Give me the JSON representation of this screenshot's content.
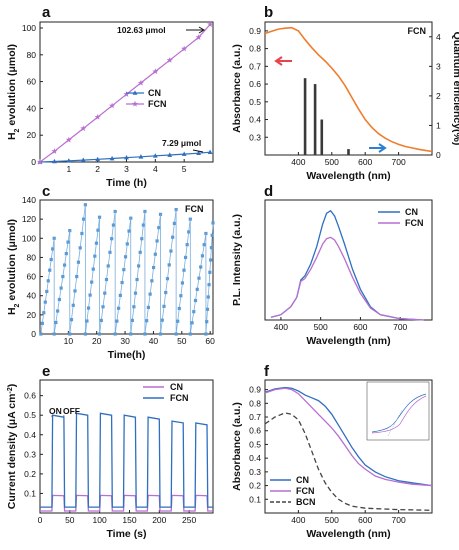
{
  "chart_data": [
    {
      "panel": "a",
      "type": "line",
      "xlabel": "Time (h)",
      "ylabel": "H2 evolution (μmol)",
      "xlim": [
        0,
        6
      ],
      "ylim": [
        0,
        100
      ],
      "xticks": [
        1,
        2,
        3,
        4,
        5
      ],
      "yticks": [
        0,
        20,
        40,
        60,
        80,
        100
      ],
      "annotations": [
        "102.63 μmol",
        "7.29 μmol"
      ],
      "legend": "center-right",
      "series": [
        {
          "name": "CN",
          "color": "#2f6fc0",
          "marker": "triangle",
          "x": [
            0,
            0.5,
            1,
            1.5,
            2,
            2.5,
            3,
            3.5,
            4,
            4.5,
            5,
            5.5,
            5.9
          ],
          "y": [
            0,
            0.4,
            0.9,
            1.4,
            2.0,
            2.6,
            3.3,
            3.9,
            4.6,
            5.2,
            5.9,
            6.6,
            7.29
          ]
        },
        {
          "name": "FCN",
          "color": "#b86fd0",
          "marker": "star",
          "x": [
            0,
            0.5,
            1,
            1.5,
            2,
            2.5,
            3,
            3.5,
            4,
            4.5,
            5,
            5.5,
            5.9
          ],
          "y": [
            0,
            8,
            16.5,
            25,
            33.5,
            42,
            50.5,
            59,
            67.5,
            76,
            84.5,
            93,
            102.63
          ]
        }
      ]
    },
    {
      "panel": "b",
      "type": "line",
      "title": "FCN",
      "xlabel": "Wavelength (nm)",
      "ylabel": "Absorbance (a.u.)",
      "ylabel_right": "Quantum efficiency(%)",
      "xlim": [
        300,
        800
      ],
      "ylim": [
        0.2,
        0.95
      ],
      "ylim_right": [
        0,
        4.5
      ],
      "xticks": [
        400,
        500,
        600,
        700
      ],
      "yticks": [
        0.3,
        0.4,
        0.5,
        0.6,
        0.7,
        0.8,
        0.9
      ],
      "yticks_right": [
        0,
        1,
        2,
        3,
        4
      ],
      "series": [
        {
          "name": "Absorbance",
          "color": "#ef7d2e",
          "x": [
            300,
            320,
            340,
            360,
            380,
            400,
            420,
            440,
            460,
            480,
            500,
            520,
            540,
            560,
            580,
            600,
            620,
            640,
            660,
            680,
            700,
            720,
            740,
            760,
            780,
            800
          ],
          "y": [
            0.885,
            0.898,
            0.91,
            0.915,
            0.918,
            0.9,
            0.85,
            0.805,
            0.765,
            0.73,
            0.69,
            0.645,
            0.59,
            0.525,
            0.46,
            0.4,
            0.355,
            0.32,
            0.295,
            0.275,
            0.26,
            0.248,
            0.24,
            0.232,
            0.226,
            0.22
          ]
        }
      ],
      "bars": {
        "name": "Quantum efficiency",
        "color": "#3a3a3a",
        "x": [
          420,
          450,
          470,
          550
        ],
        "values": [
          2.6,
          2.4,
          1.2,
          0.2
        ]
      }
    },
    {
      "panel": "c",
      "type": "line",
      "title": "FCN",
      "xlabel": "Time(h)",
      "ylabel": "H2 evolution (μmol)",
      "xlim": [
        0,
        61
      ],
      "ylim": [
        0,
        140
      ],
      "xticks": [
        10,
        20,
        30,
        40,
        50,
        60
      ],
      "yticks": [
        0,
        20,
        40,
        60,
        80,
        100,
        120,
        140
      ],
      "cycle_peaks": [
        [
          5,
          100
        ],
        [
          10.5,
          108
        ],
        [
          16,
          135
        ],
        [
          21,
          122
        ],
        [
          26.5,
          128
        ],
        [
          32,
          121
        ],
        [
          37,
          128
        ],
        [
          42.5,
          125
        ],
        [
          48,
          130
        ],
        [
          53,
          120
        ],
        [
          58.5,
          105
        ],
        [
          61,
          116
        ]
      ]
    },
    {
      "panel": "d",
      "type": "line",
      "xlabel": "Wavelength (nm)",
      "ylabel": "P.L. Intensity (a.u.)",
      "xlim": [
        360,
        780
      ],
      "xticks": [
        400,
        500,
        600,
        700
      ],
      "legend": "top-right",
      "series": [
        {
          "name": "CN",
          "color": "#2f6fc0",
          "x": [
            375,
            400,
            425,
            440,
            450,
            460,
            475,
            490,
            505,
            515,
            525,
            535,
            545,
            560,
            580,
            600,
            625,
            650,
            700,
            760
          ],
          "y": [
            0.02,
            0.04,
            0.1,
            0.17,
            0.3,
            0.33,
            0.42,
            0.55,
            0.72,
            0.8,
            0.82,
            0.78,
            0.7,
            0.57,
            0.38,
            0.23,
            0.1,
            0.04,
            0.01,
            0.0
          ]
        },
        {
          "name": "FCN",
          "color": "#b86fd0",
          "x": [
            375,
            400,
            425,
            440,
            450,
            460,
            475,
            490,
            505,
            515,
            525,
            535,
            545,
            560,
            580,
            600,
            625,
            650,
            700,
            760
          ],
          "y": [
            0.02,
            0.04,
            0.1,
            0.17,
            0.29,
            0.31,
            0.38,
            0.47,
            0.57,
            0.61,
            0.62,
            0.6,
            0.55,
            0.46,
            0.32,
            0.2,
            0.09,
            0.04,
            0.01,
            0.0
          ]
        }
      ]
    },
    {
      "panel": "e",
      "type": "line",
      "xlabel": "Time (s)",
      "ylabel": "Current density (μA cm-2)",
      "xlim": [
        0,
        290
      ],
      "ylim": [
        0,
        0.68
      ],
      "xticks": [
        0,
        50,
        100,
        150,
        200,
        250
      ],
      "yticks": [
        0.1,
        0.2,
        0.3,
        0.4,
        0.5,
        0.6
      ],
      "annotations": [
        "ON",
        "OFF"
      ],
      "legend": "top-right",
      "series": [
        {
          "name": "CN",
          "color": "#b86fd0",
          "on_level": 0.09,
          "off_level": 0.01
        },
        {
          "name": "FCN",
          "color": "#2f6fc0",
          "on_levels": [
            0.5,
            0.51,
            0.51,
            0.5,
            0.49,
            0.47,
            0.46
          ],
          "off_level": 0.03
        }
      ],
      "on_windows": [
        [
          20,
          40
        ],
        [
          60,
          80
        ],
        [
          100,
          120
        ],
        [
          140,
          160
        ],
        [
          180,
          200
        ],
        [
          220,
          240
        ],
        [
          260,
          280
        ]
      ]
    },
    {
      "panel": "f",
      "type": "line",
      "xlabel": "Wavelength (nm)",
      "ylabel": "Absorbance (a.u.)",
      "xlim": [
        300,
        800
      ],
      "ylim": [
        0,
        0.97
      ],
      "xticks": [
        400,
        500,
        600,
        700
      ],
      "yticks": [
        0.1,
        0.2,
        0.3,
        0.4,
        0.5,
        0.6,
        0.7,
        0.8,
        0.9
      ],
      "legend": "bottom-left",
      "series": [
        {
          "name": "CN",
          "color": "#2f6fc0",
          "dash": "solid",
          "x": [
            300,
            330,
            360,
            380,
            400,
            420,
            440,
            460,
            480,
            500,
            520,
            540,
            560,
            580,
            600,
            630,
            660,
            700,
            740,
            800
          ],
          "y": [
            0.88,
            0.905,
            0.915,
            0.91,
            0.89,
            0.86,
            0.84,
            0.82,
            0.78,
            0.72,
            0.64,
            0.56,
            0.48,
            0.41,
            0.35,
            0.3,
            0.265,
            0.235,
            0.22,
            0.2
          ]
        },
        {
          "name": "FCN",
          "color": "#b86fd0",
          "dash": "solid",
          "x": [
            300,
            330,
            360,
            380,
            400,
            420,
            440,
            460,
            480,
            500,
            520,
            540,
            560,
            580,
            600,
            630,
            660,
            700,
            740,
            800
          ],
          "y": [
            0.875,
            0.9,
            0.91,
            0.9,
            0.87,
            0.82,
            0.77,
            0.72,
            0.67,
            0.62,
            0.56,
            0.49,
            0.42,
            0.36,
            0.32,
            0.27,
            0.245,
            0.225,
            0.21,
            0.2
          ]
        },
        {
          "name": "BCN",
          "color": "#444444",
          "dash": "dashed",
          "x": [
            300,
            330,
            360,
            380,
            400,
            420,
            440,
            460,
            480,
            500,
            520,
            540,
            560,
            600,
            650,
            700,
            800
          ],
          "y": [
            0.65,
            0.7,
            0.73,
            0.72,
            0.68,
            0.58,
            0.45,
            0.32,
            0.22,
            0.15,
            0.1,
            0.07,
            0.05,
            0.035,
            0.03,
            0.025,
            0.02
          ]
        }
      ]
    }
  ]
}
